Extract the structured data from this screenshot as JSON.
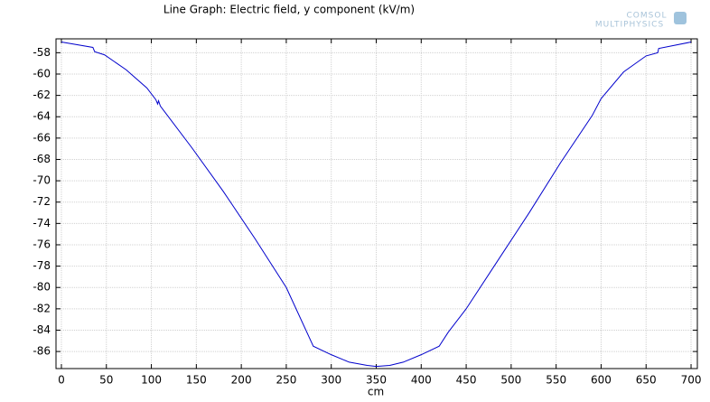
{
  "chart_data": {
    "type": "line",
    "title": "Line Graph: Electric field, y component (kV/m)",
    "x_label": "cm",
    "logo": [
      "COMSOL",
      "MULTIPHYSICS"
    ],
    "x": [
      0,
      35,
      37,
      48,
      72,
      95,
      105,
      107,
      108,
      110,
      145,
      180,
      215,
      250,
      280,
      300,
      320,
      340,
      350,
      365,
      380,
      400,
      420,
      430,
      450,
      485,
      520,
      555,
      590,
      600,
      625,
      650,
      663,
      664,
      700
    ],
    "series": [
      {
        "color": "#0000cc",
        "values": [
          -57.0,
          -57.5,
          -57.9,
          -58.2,
          -59.6,
          -61.3,
          -62.4,
          -62.8,
          -62.5,
          -63.0,
          -66.9,
          -71.0,
          -75.4,
          -80.0,
          -85.5,
          -86.3,
          -87.0,
          -87.3,
          -87.4,
          -87.3,
          -87.0,
          -86.3,
          -85.5,
          -84.2,
          -82.0,
          -77.5,
          -73.0,
          -68.3,
          -63.9,
          -62.3,
          -59.8,
          -58.3,
          -58.0,
          -57.6,
          -57.0
        ]
      }
    ],
    "xlim": [
      -6,
      707
    ],
    "ylim": [
      -87.6,
      -56.7
    ],
    "xticks": [
      0,
      50,
      100,
      150,
      200,
      250,
      300,
      350,
      400,
      450,
      500,
      550,
      600,
      650,
      700
    ],
    "yticks": [
      -58,
      -60,
      -62,
      -64,
      -66,
      -68,
      -70,
      -72,
      -74,
      -76,
      -78,
      -80,
      -82,
      -84,
      -86
    ],
    "grid": true
  }
}
